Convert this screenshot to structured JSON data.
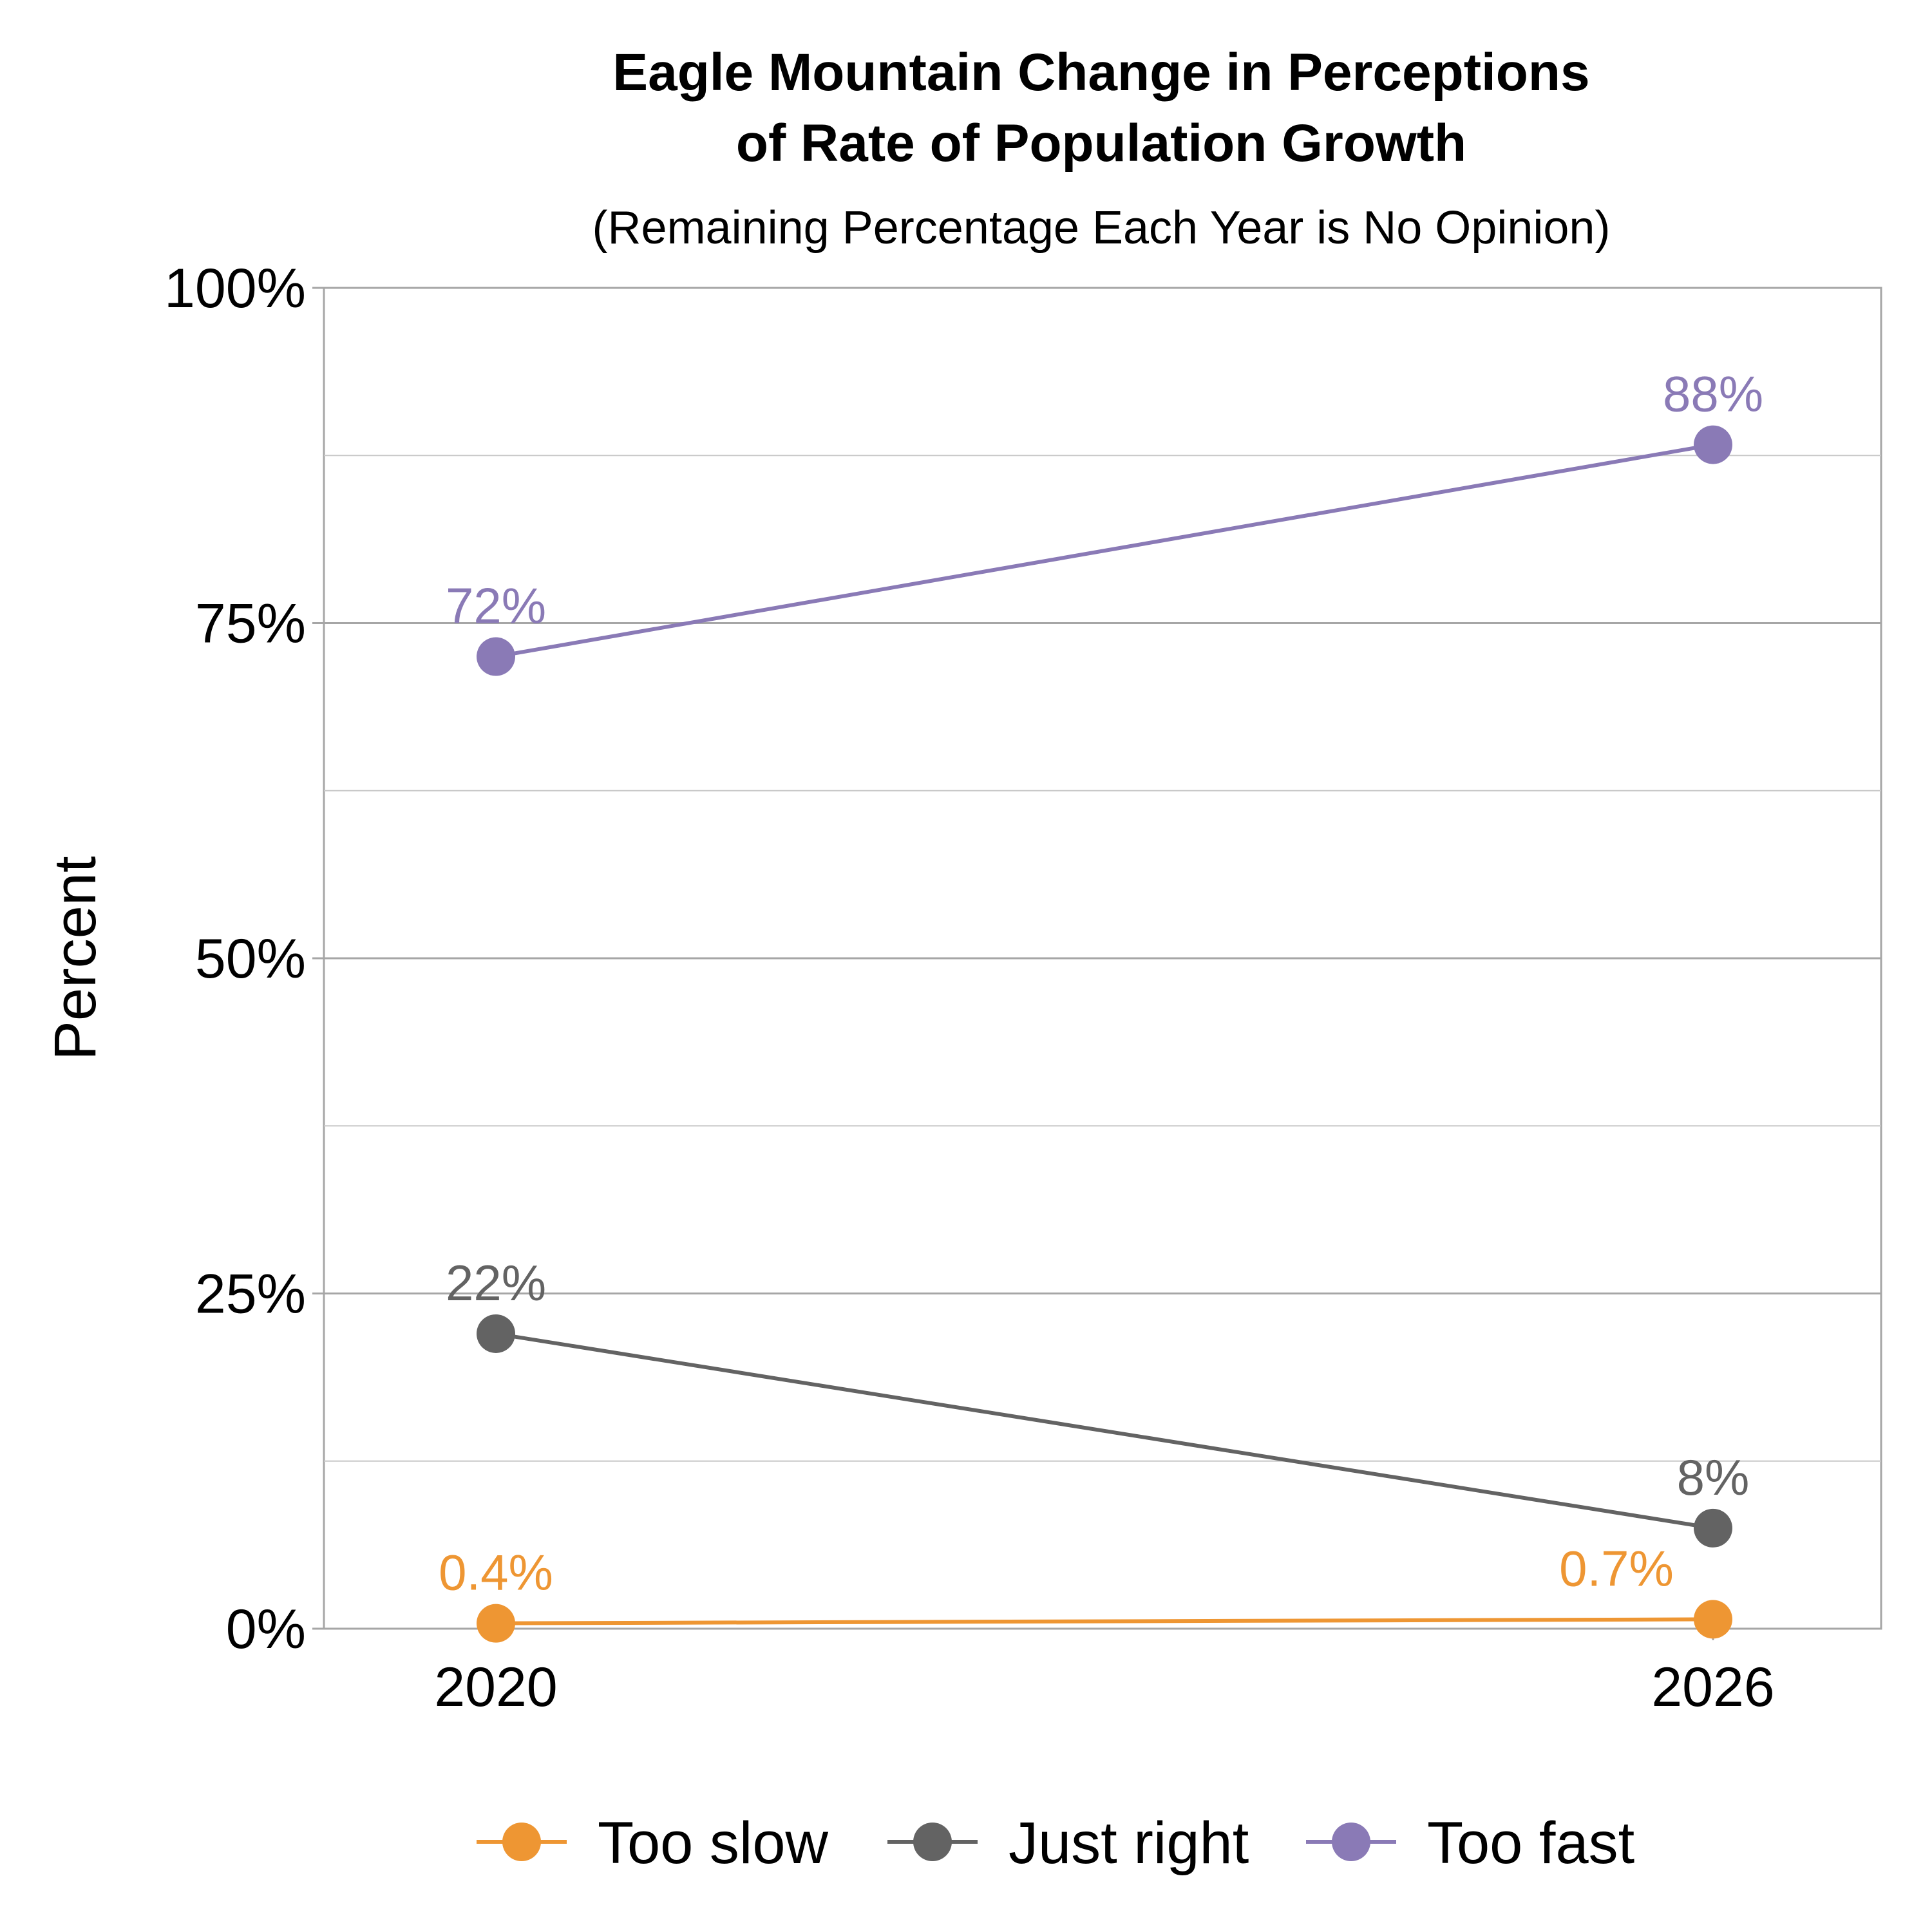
{
  "chart_data": {
    "type": "line",
    "title_lines": [
      "Eagle Mountain Change in Perceptions",
      "of Rate of Population Growth"
    ],
    "subtitle": "(Remaining Percentage Each Year is No Opinion)",
    "xlabel": "",
    "ylabel": "Percent",
    "x": [
      "2020",
      "2026"
    ],
    "ylim": [
      0,
      100
    ],
    "yticks": [
      0,
      25,
      50,
      75,
      100
    ],
    "ytick_labels": [
      "0%",
      "25%",
      "50%",
      "75%",
      "100%"
    ],
    "grid": true,
    "legend_position": "bottom",
    "series": [
      {
        "name": "Too slow",
        "color": "#EE9633",
        "values": [
          0.4,
          0.7
        ],
        "labels": [
          "0.4%",
          "0.7%"
        ]
      },
      {
        "name": "Just right",
        "color": "#636363",
        "values": [
          22,
          7.5
        ],
        "labels": [
          "22%",
          "8%"
        ]
      },
      {
        "name": "Too fast",
        "color": "#8A7AB6",
        "values": [
          72.5,
          88.3
        ],
        "labels": [
          "72%",
          "88%"
        ]
      }
    ]
  }
}
